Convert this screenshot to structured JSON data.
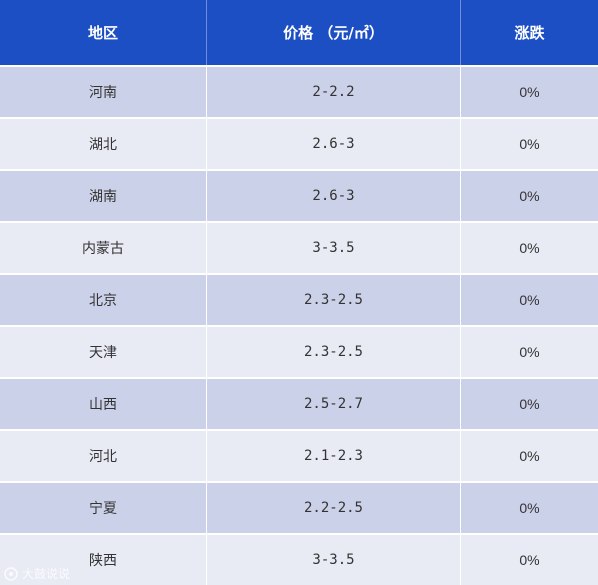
{
  "header": {
    "region": "地区",
    "price": "价格 （元/㎡）",
    "change": "涨跌"
  },
  "rows": [
    {
      "region": "河南",
      "price": "2-2.2",
      "change": "0%"
    },
    {
      "region": "湖北",
      "price": "2.6-3",
      "change": "0%"
    },
    {
      "region": "湖南",
      "price": "2.6-3",
      "change": "0%"
    },
    {
      "region": "内蒙古",
      "price": "3-3.5",
      "change": "0%"
    },
    {
      "region": "北京",
      "price": "2.3-2.5",
      "change": "0%"
    },
    {
      "region": "天津",
      "price": "2.3-2.5",
      "change": "0%"
    },
    {
      "region": "山西",
      "price": "2.5-2.7",
      "change": "0%"
    },
    {
      "region": "河北",
      "price": "2.1-2.3",
      "change": "0%"
    },
    {
      "region": "宁夏",
      "price": "2.2-2.5",
      "change": "0%"
    },
    {
      "region": "陕西",
      "price": "3-3.5",
      "change": "0%"
    }
  ],
  "watermark": "大鼓说说",
  "colors": {
    "header_bg": "#1d4fc4",
    "row_odd": "#ccd1ea",
    "row_even": "#e8eaf4"
  }
}
